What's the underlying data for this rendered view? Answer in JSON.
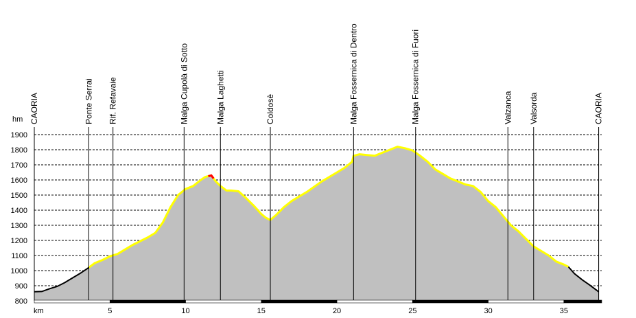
{
  "chart_data": {
    "type": "area",
    "title": "",
    "xlabel": "km",
    "ylabel": "hm",
    "xlim": [
      0,
      37.5
    ],
    "ylim": [
      800,
      1900
    ],
    "x_ticks": [
      5,
      10,
      15,
      20,
      25,
      30,
      35
    ],
    "y_ticks": [
      800,
      900,
      1000,
      1100,
      1200,
      1300,
      1400,
      1500,
      1600,
      1700,
      1800,
      1900
    ],
    "grid": true,
    "colors": {
      "fill": "#c0c0c0",
      "line": "#000000",
      "highlight": "#ffff00",
      "peak_mark": "#ff0000",
      "grid": "#000000"
    },
    "highlight_range": [
      3.6,
      35.3
    ],
    "waypoints": [
      {
        "name": "CAORIA",
        "km": 0
      },
      {
        "name": "Ponte Serrai",
        "km": 3.6
      },
      {
        "name": "Rif. Refavaie",
        "km": 5.2
      },
      {
        "name": "Malga Cupolà di Sotto",
        "km": 9.9
      },
      {
        "name": "Malga Laghetti",
        "km": 12.3
      },
      {
        "name": "Coldosè",
        "km": 15.6
      },
      {
        "name": "Malga Fossernica di Dentro",
        "km": 21.1
      },
      {
        "name": "Malga Fossernica di Fuori",
        "km": 25.2
      },
      {
        "name": "Valzanca",
        "km": 31.3
      },
      {
        "name": "Valsorda",
        "km": 33.0
      },
      {
        "name": "CAORIA",
        "km": 37.3
      }
    ],
    "series": [
      {
        "x": [
          0,
          0.5,
          1.0,
          1.5,
          2.0,
          2.5,
          3.0,
          3.6,
          4.0,
          4.5,
          5.0,
          5.5,
          6.0,
          6.5,
          7.0,
          7.5,
          8.0,
          8.5,
          9.0,
          9.5,
          10.0,
          10.5,
          11.0,
          11.3,
          11.7,
          12.0,
          12.3,
          12.7,
          13.0,
          13.5,
          14.0,
          14.5,
          15.0,
          15.3,
          15.6,
          16.0,
          16.5,
          17.0,
          17.5,
          18.0,
          18.5,
          19.0,
          19.5,
          20.0,
          20.5,
          21.0,
          21.1,
          21.5,
          22.0,
          22.5,
          23.0,
          23.5,
          24.0,
          24.5,
          25.0,
          25.5,
          26.0,
          26.5,
          27.0,
          27.5,
          28.0,
          28.5,
          29.0,
          29.5,
          30.0,
          30.5,
          31.0,
          31.5,
          32.0,
          32.5,
          33.0,
          33.5,
          34.0,
          34.5,
          35.0,
          35.3,
          35.7,
          36.2,
          36.7,
          37.3
        ],
        "values": [
          860,
          862,
          880,
          895,
          920,
          950,
          980,
          1020,
          1050,
          1070,
          1095,
          1110,
          1140,
          1170,
          1195,
          1220,
          1250,
          1320,
          1420,
          1500,
          1540,
          1560,
          1600,
          1620,
          1630,
          1590,
          1560,
          1530,
          1530,
          1525,
          1480,
          1430,
          1375,
          1350,
          1335,
          1370,
          1420,
          1460,
          1490,
          1520,
          1555,
          1590,
          1620,
          1650,
          1680,
          1720,
          1760,
          1770,
          1765,
          1760,
          1780,
          1800,
          1820,
          1810,
          1795,
          1760,
          1720,
          1670,
          1640,
          1610,
          1590,
          1570,
          1560,
          1520,
          1460,
          1420,
          1360,
          1300,
          1260,
          1210,
          1160,
          1130,
          1100,
          1060,
          1040,
          1025,
          980,
          940,
          905,
          860
        ]
      }
    ]
  }
}
